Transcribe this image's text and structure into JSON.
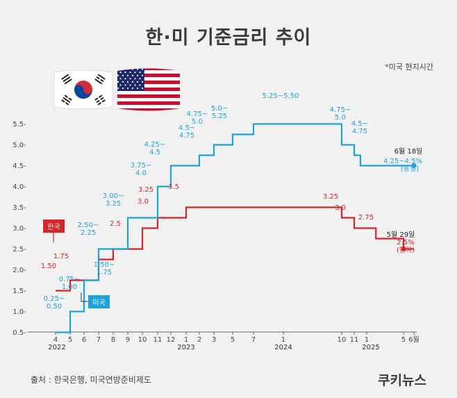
{
  "title": "한·미 기준금리 추이",
  "note": "*미국 현지시간",
  "source": "출처 : 한국은행, 미국연방준비제도",
  "brand": "쿠키뉴스",
  "colors": {
    "korea": "#d8232a",
    "us": "#1ba3dd",
    "background": "#f1f1f1"
  },
  "icons": [
    "korea-flag-icon",
    "us-flag-icon"
  ],
  "chart_data": {
    "type": "line",
    "yticks": [
      "0.5",
      "1.0",
      "1.5",
      "2.0",
      "2.5",
      "3.0",
      "3.5",
      "4.0",
      "4.5",
      "5.0",
      "5.5"
    ],
    "ylim": [
      0.25,
      5.85
    ],
    "xticks": [
      "4",
      "5",
      "6",
      "7",
      "8",
      "9",
      "10",
      "11",
      "12",
      "1",
      "2",
      "3",
      "5",
      "7",
      "1",
      "10",
      "11",
      "1",
      "5",
      "6월"
    ],
    "years": [
      "2022",
      "2023",
      "2024",
      "2025"
    ],
    "series": [
      {
        "name": "한국",
        "color": "#d8232a",
        "steps": [
          {
            "x": "2022-04",
            "y": 1.5,
            "label": "1.50"
          },
          {
            "x": "2022-05",
            "y": 1.75,
            "label": "1.75"
          },
          {
            "x": "2022-07",
            "y": 2.25,
            "label": ""
          },
          {
            "x": "2022-08",
            "y": 2.5,
            "label": "2.5"
          },
          {
            "x": "2022-10",
            "y": 3.0,
            "label": "3.0"
          },
          {
            "x": "2022-11",
            "y": 3.25,
            "label": "3.25"
          },
          {
            "x": "2023-01",
            "y": 3.5,
            "label": "3.5"
          },
          {
            "x": "2024-10",
            "y": 3.25,
            "label": "3.25"
          },
          {
            "x": "2024-11",
            "y": 3.0,
            "label": "3.0"
          },
          {
            "x": "2025-02",
            "y": 2.75,
            "label": "2.75"
          },
          {
            "x": "2025-05",
            "y": 2.5,
            "label": ""
          }
        ],
        "end": "2025-06",
        "annotation": {
          "date": "5월 29일",
          "value": "2.5%",
          "note": "(인하)"
        }
      },
      {
        "name": "미국",
        "color": "#1ba3dd",
        "steps": [
          {
            "x": "2022-04",
            "y": 0.5,
            "label": "0.25~\n0.50"
          },
          {
            "x": "2022-05",
            "y": 1.0,
            "label": "0.75~\n1.00"
          },
          {
            "x": "2022-06",
            "y": 1.75,
            "label": "1.50~\n1.75"
          },
          {
            "x": "2022-07",
            "y": 2.5,
            "label": "2.50~\n2.25"
          },
          {
            "x": "2022-09",
            "y": 3.25,
            "label": "3.00~\n3.25"
          },
          {
            "x": "2022-11",
            "y": 4.0,
            "label": "3.75~\n4.0"
          },
          {
            "x": "2022-12",
            "y": 4.5,
            "label": "4.25~\n4.5"
          },
          {
            "x": "2023-02",
            "y": 4.75,
            "label": "4.5~\n4.75"
          },
          {
            "x": "2023-03",
            "y": 5.0,
            "label": "4.75~\n5.0"
          },
          {
            "x": "2023-05",
            "y": 5.25,
            "label": "5.0~\n5.25"
          },
          {
            "x": "2023-07",
            "y": 5.5,
            "label": "5.25~5.50"
          },
          {
            "x": "2024-10",
            "y": 5.0,
            "label": "4.75~\n5.0"
          },
          {
            "x": "2024-11",
            "y": 4.75,
            "label": "4.5~\n4.75"
          },
          {
            "x": "2024-12",
            "y": 4.5,
            "label": ""
          }
        ],
        "end": "2025-06",
        "annotation": {
          "date": "6월 18일",
          "value": "4.25~4.5%",
          "note": "(동결)"
        }
      }
    ]
  }
}
